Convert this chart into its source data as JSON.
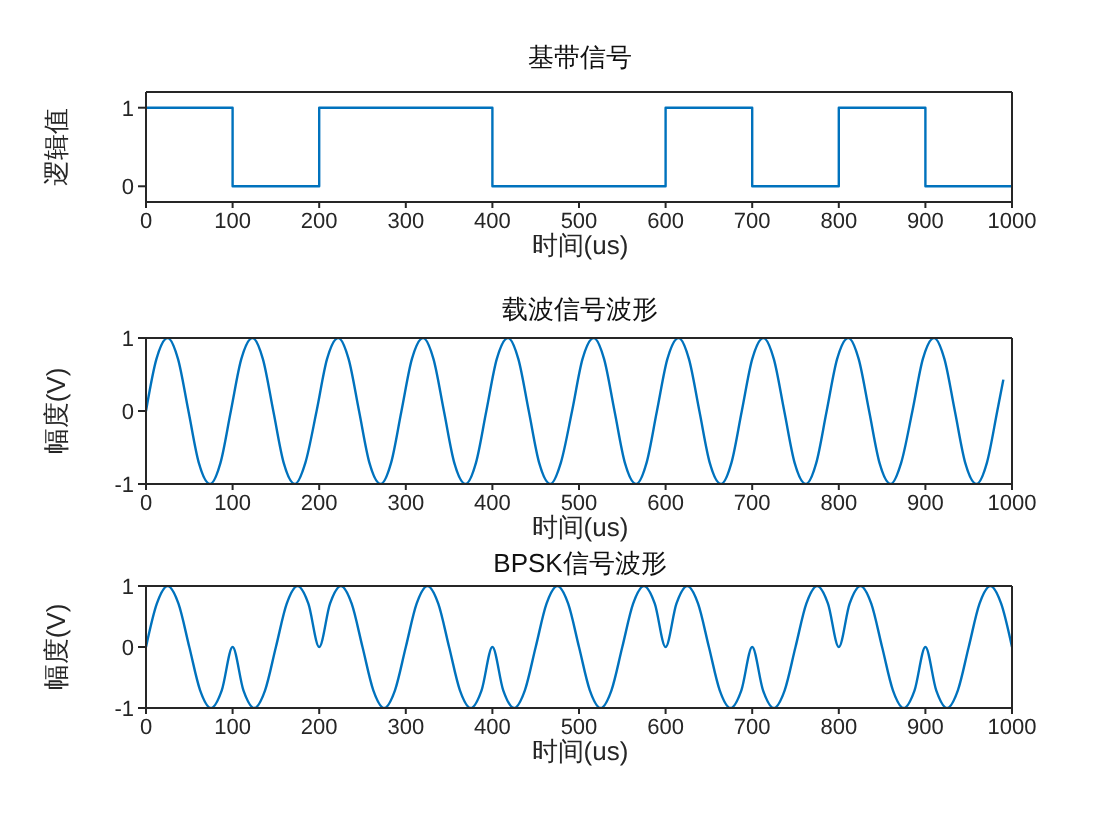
{
  "chart_data": [
    {
      "type": "step",
      "title": "基带信号",
      "xlabel": "时间(us)",
      "ylabel": "逻辑值",
      "color": "#0072bd",
      "x": [
        0,
        100,
        200,
        400,
        600,
        700,
        800,
        900,
        1000
      ],
      "values": [
        1,
        0,
        1,
        0,
        1,
        0,
        1,
        0,
        0
      ],
      "xlim": [
        0,
        1000
      ],
      "xticks": [
        0,
        100,
        200,
        300,
        400,
        500,
        600,
        700,
        800,
        900,
        1000
      ],
      "ylim": [
        -0.2,
        1.2
      ],
      "yticks": [
        0,
        1
      ]
    },
    {
      "type": "line",
      "title": "载波信号波形",
      "xlabel": "时间(us)",
      "ylabel": "幅度(V)",
      "color": "#0072bd",
      "x": [
        0,
        12,
        25,
        37,
        49,
        61,
        74,
        86,
        98,
        110,
        123,
        135,
        147,
        159,
        172,
        184,
        197,
        209,
        222,
        234,
        246,
        258,
        271,
        283,
        295,
        307,
        320,
        332,
        344,
        356,
        369,
        381,
        393,
        405,
        418,
        430,
        442,
        454,
        467,
        479,
        492,
        504,
        517,
        529,
        541,
        553,
        566,
        578,
        590,
        602,
        615,
        627,
        639,
        651,
        664,
        676,
        688,
        700,
        713,
        725,
        737,
        749,
        762,
        774,
        786,
        798,
        811,
        823,
        835,
        847,
        860,
        872,
        885,
        897,
        910,
        922,
        934,
        946,
        959,
        971,
        983,
        990
      ],
      "values": [
        0,
        0.71,
        1,
        0.71,
        0,
        -0.71,
        -1,
        -0.71,
        0,
        0.71,
        1,
        0.71,
        0,
        -0.71,
        -1,
        -0.71,
        0,
        0.71,
        1,
        0.71,
        0,
        -0.71,
        -1,
        -0.71,
        0,
        0.71,
        1,
        0.71,
        0,
        -0.71,
        -1,
        -0.71,
        0,
        0.71,
        1,
        0.71,
        0,
        -0.71,
        -1,
        -0.71,
        0,
        0.71,
        1,
        0.71,
        0,
        -0.71,
        -1,
        -0.71,
        0,
        0.71,
        1,
        0.71,
        0,
        -0.71,
        -1,
        -0.71,
        0,
        0.71,
        1,
        0.71,
        0,
        -0.71,
        -1,
        -0.71,
        0,
        0.71,
        1,
        0.71,
        0,
        -0.71,
        -1,
        -0.71,
        0,
        0.71,
        1,
        0.71,
        0,
        -0.71,
        -1,
        -0.71,
        0,
        0.43
      ],
      "xlim": [
        0,
        1000
      ],
      "xticks": [
        0,
        100,
        200,
        300,
        400,
        500,
        600,
        700,
        800,
        900,
        1000
      ],
      "ylim": [
        -1,
        1
      ],
      "yticks": [
        -1,
        0,
        1
      ]
    },
    {
      "type": "line",
      "title": "BPSK信号波形",
      "xlabel": "时间(us)",
      "ylabel": "幅度(V)",
      "color": "#0072bd",
      "x": [
        0,
        12.5,
        25,
        37.5,
        50,
        62.5,
        75,
        87.5,
        100,
        112.5,
        125,
        137.5,
        150,
        162.5,
        175,
        187.5,
        200,
        212.5,
        225,
        237.5,
        250,
        262.5,
        275,
        287.5,
        300,
        312.5,
        325,
        337.5,
        350,
        362.5,
        375,
        387.5,
        400,
        412.5,
        425,
        437.5,
        450,
        462.5,
        475,
        487.5,
        500,
        512.5,
        525,
        537.5,
        550,
        562.5,
        575,
        587.5,
        600,
        612.5,
        625,
        637.5,
        650,
        662.5,
        675,
        687.5,
        700,
        712.5,
        725,
        737.5,
        750,
        762.5,
        775,
        787.5,
        800,
        812.5,
        825,
        837.5,
        850,
        862.5,
        875,
        887.5,
        900,
        912.5,
        925,
        937.5,
        950,
        962.5,
        975,
        987.5,
        1000
      ],
      "values": [
        0,
        0.71,
        1,
        0.71,
        0,
        -0.71,
        -1,
        -0.71,
        0,
        -0.71,
        -1,
        -0.71,
        0,
        0.71,
        1,
        0.71,
        0,
        0.71,
        1,
        0.71,
        0,
        -0.71,
        -1,
        -0.71,
        0,
        0.71,
        1,
        0.71,
        0,
        -0.71,
        -1,
        -0.71,
        0,
        -0.71,
        -1,
        -0.71,
        0,
        0.71,
        1,
        0.71,
        0,
        -0.71,
        -1,
        -0.71,
        0,
        0.71,
        1,
        0.71,
        0,
        0.71,
        1,
        0.71,
        0,
        -0.71,
        -1,
        -0.71,
        0,
        -0.71,
        -1,
        -0.71,
        0,
        0.71,
        1,
        0.71,
        0,
        0.71,
        1,
        0.71,
        0,
        -0.71,
        -1,
        -0.71,
        0,
        -0.71,
        -1,
        -0.71,
        0,
        0.71,
        1,
        0.71,
        0
      ],
      "xlim": [
        0,
        1000
      ],
      "xticks": [
        0,
        100,
        200,
        300,
        400,
        500,
        600,
        700,
        800,
        900,
        1000
      ],
      "ylim": [
        -1,
        1
      ],
      "yticks": [
        -1,
        0,
        1
      ]
    }
  ]
}
